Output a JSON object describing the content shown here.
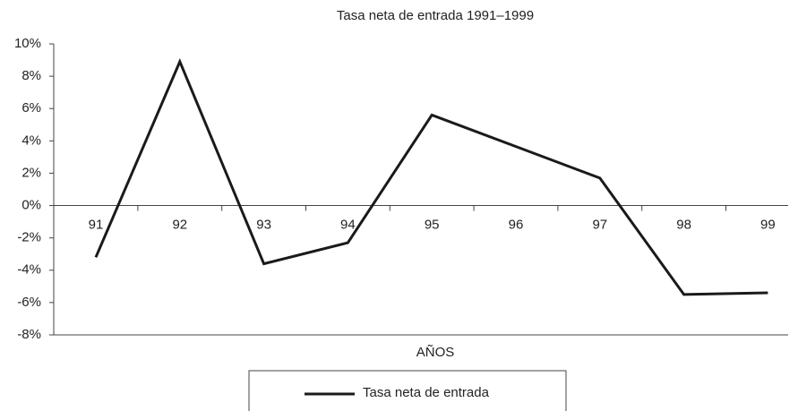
{
  "chart_data": {
    "type": "line",
    "title": "Tasa neta de entrada 1991–1999",
    "xlabel": "AÑOS",
    "categories": [
      "91",
      "92",
      "93",
      "94",
      "95",
      "96",
      "97",
      "98",
      "99"
    ],
    "series": [
      {
        "name": "Tasa neta de entrada",
        "color": "#1a1a1a",
        "values": [
          -3.2,
          8.9,
          -3.6,
          -2.3,
          5.6,
          3.65,
          1.7,
          -5.5,
          -5.4
        ]
      }
    ],
    "ylim": [
      -8,
      10
    ],
    "yticks": [
      {
        "value": -8,
        "label": "-8%"
      },
      {
        "value": -6,
        "label": "-6%"
      },
      {
        "value": -4,
        "label": "-4%"
      },
      {
        "value": -2,
        "label": "-2%"
      },
      {
        "value": 0,
        "label": "0%"
      },
      {
        "value": 2,
        "label": "2%"
      },
      {
        "value": 4,
        "label": "4%"
      },
      {
        "value": 6,
        "label": "6%"
      },
      {
        "value": 8,
        "label": "8%"
      },
      {
        "value": 10,
        "label": "10%"
      }
    ],
    "legend": "bottom"
  }
}
